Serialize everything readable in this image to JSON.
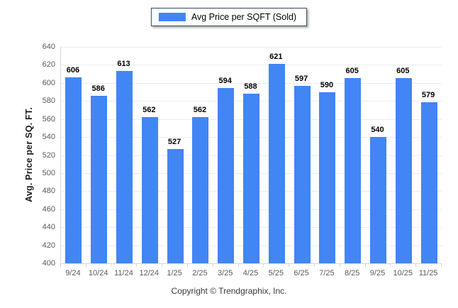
{
  "legend": {
    "label": "Avg Price per SQFT (Sold)",
    "swatch_color": "#4285F4"
  },
  "footer": {
    "copyright": "Copyright © Trendgraphix, Inc."
  },
  "chart_data": {
    "type": "bar",
    "title": "",
    "categories": [
      "9/24",
      "10/24",
      "11/24",
      "12/24",
      "1/25",
      "2/25",
      "3/25",
      "4/25",
      "5/25",
      "6/25",
      "7/25",
      "8/25",
      "9/25",
      "10/25",
      "11/25"
    ],
    "series": [
      {
        "name": "Avg Price per SQFT (Sold)",
        "color": "#4285F4",
        "values": [
          606,
          586,
          613,
          562,
          527,
          562,
          594,
          588,
          621,
          597,
          590,
          605,
          540,
          605,
          579
        ]
      }
    ],
    "xlabel": "",
    "ylabel": "Avg. Price per SQ. FT.",
    "ylim": [
      400,
      640
    ],
    "ytick_step": 20,
    "grid": "horizontal-only",
    "legend_position": "top-center",
    "value_labels": true
  },
  "colors": {
    "bar": "#4285F4",
    "gridline": "#ececec",
    "axis_line": "#d6d6d6",
    "tick_label": "#5a5a5a",
    "value_label": "#000000",
    "footer_text": "#3a3a3a"
  }
}
